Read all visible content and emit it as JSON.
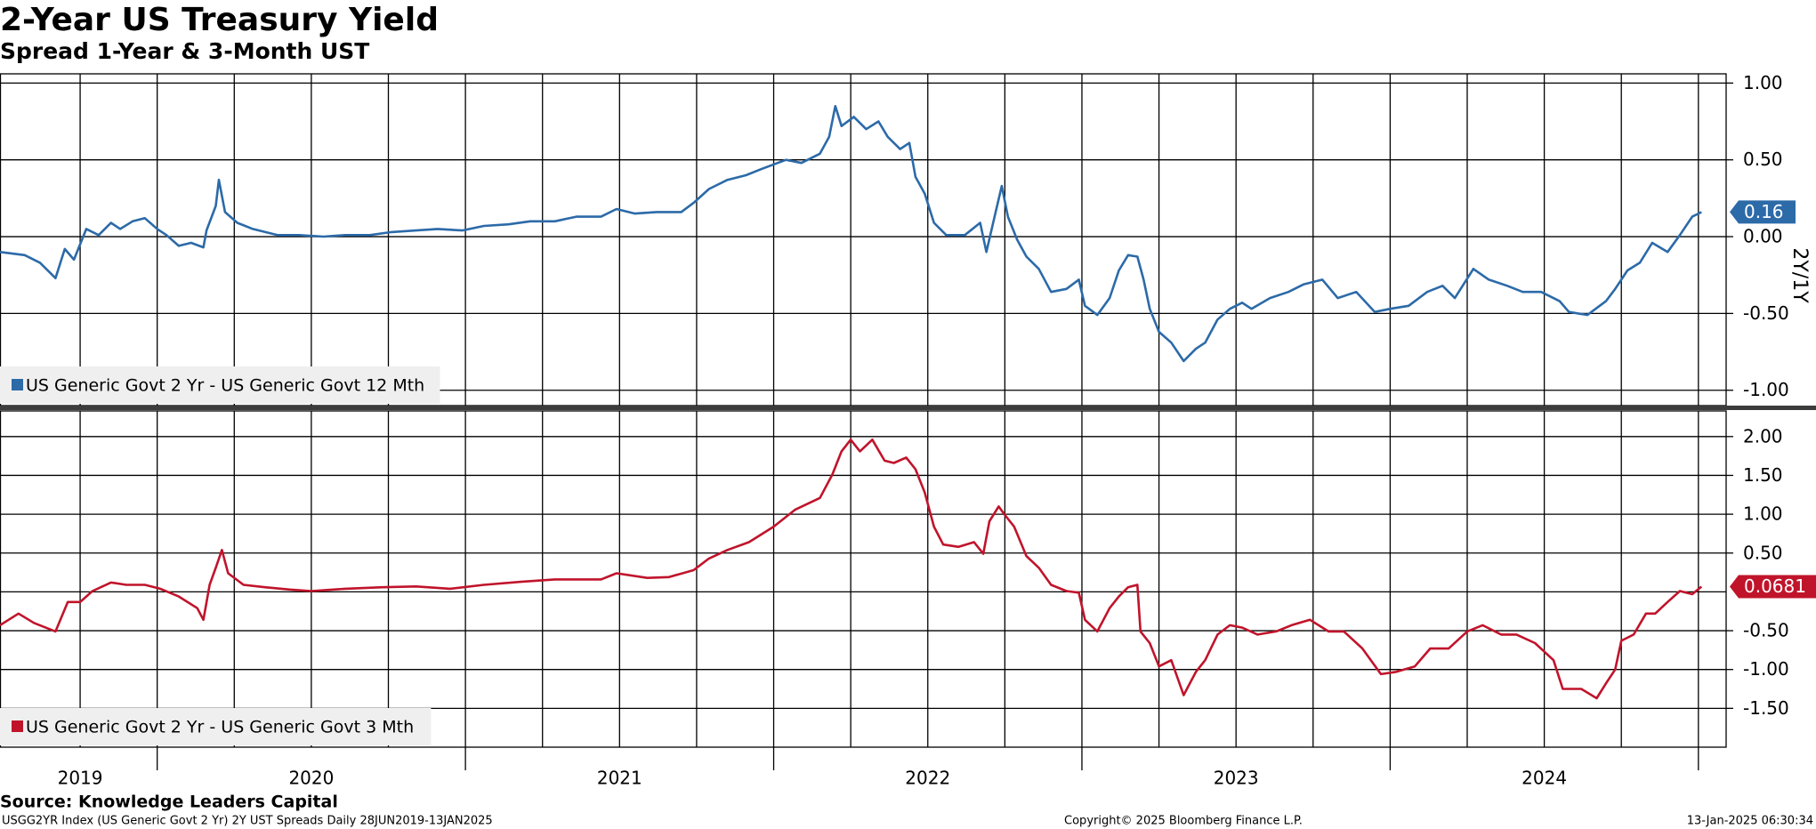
{
  "chart_data": [
    {
      "type": "line",
      "title": "2-Year US Treasury Yield",
      "subtitle": "Spread 1-Year & 3-Month UST",
      "y_axis_label": "2Y/1Y",
      "xlim": [
        2019.49,
        2025.09
      ],
      "ylim": [
        -1.1,
        1.06
      ],
      "legend": "bottom-left",
      "grid": true,
      "xgrid": [
        2019.75,
        2020,
        2020.25,
        2020.5,
        2020.75,
        2021,
        2021.25,
        2021.5,
        2021.75,
        2022,
        2022.25,
        2022.5,
        2022.75,
        2023,
        2023.25,
        2023.5,
        2023.75,
        2024,
        2024.25,
        2024.5,
        2024.75,
        2025
      ],
      "yticks": [
        {
          "value": 1,
          "label": "1.00"
        },
        {
          "value": 0.5,
          "label": "0.50"
        },
        {
          "value": 0,
          "label": "0.00"
        },
        {
          "value": -0.5,
          "label": "-0.50"
        },
        {
          "value": -1,
          "label": "-1.00"
        }
      ],
      "x": [
        2019.49,
        2019.57,
        2019.62,
        2019.67,
        2019.7,
        2019.73,
        2019.77,
        2019.81,
        2019.85,
        2019.88,
        2019.92,
        2019.96,
        2020.0,
        2020.03,
        2020.07,
        2020.11,
        2020.15,
        2020.16,
        2020.19,
        2020.2,
        2020.22,
        2020.26,
        2020.31,
        2020.39,
        2020.46,
        2020.54,
        2020.61,
        2020.69,
        2020.76,
        2020.84,
        2020.91,
        2020.99,
        2021.06,
        2021.14,
        2021.21,
        2021.29,
        2021.36,
        2021.44,
        2021.49,
        2021.55,
        2021.62,
        2021.7,
        2021.74,
        2021.79,
        2021.85,
        2021.91,
        2021.96,
        2022.04,
        2022.09,
        2022.15,
        2022.18,
        2022.2,
        2022.22,
        2022.26,
        2022.3,
        2022.34,
        2022.37,
        2022.41,
        2022.44,
        2022.46,
        2022.49,
        2022.52,
        2022.56,
        2022.62,
        2022.67,
        2022.69,
        2022.72,
        2022.74,
        2022.76,
        2022.79,
        2022.82,
        2022.86,
        2022.9,
        2022.95,
        2022.99,
        2023.01,
        2023.05,
        2023.09,
        2023.12,
        2023.15,
        2023.18,
        2023.2,
        2023.22,
        2023.25,
        2023.29,
        2023.33,
        2023.37,
        2023.4,
        2023.44,
        2023.48,
        2023.52,
        2023.55,
        2023.61,
        2023.67,
        2023.72,
        2023.78,
        2023.83,
        2023.89,
        2023.95,
        2024.0,
        2024.06,
        2024.12,
        2024.17,
        2024.21,
        2024.27,
        2024.32,
        2024.38,
        2024.43,
        2024.49,
        2024.55,
        2024.58,
        2024.64,
        2024.7,
        2024.73,
        2024.77,
        2024.81,
        2024.85,
        2024.9,
        2024.94,
        2024.98,
        2025.01
      ],
      "series": [
        {
          "name": "US Generic Govt 2 Yr - US Generic Govt 12 Mth",
          "color": "#2c6aa8",
          "last_value": 0.16,
          "values": [
            -0.1,
            -0.12,
            -0.17,
            -0.27,
            -0.08,
            -0.15,
            0.05,
            0.01,
            0.09,
            0.05,
            0.1,
            0.12,
            0.05,
            0.01,
            -0.06,
            -0.04,
            -0.07,
            0.04,
            0.2,
            0.37,
            0.16,
            0.09,
            0.05,
            0.01,
            0.01,
            0.0,
            0.01,
            0.01,
            0.03,
            0.04,
            0.05,
            0.04,
            0.07,
            0.08,
            0.1,
            0.1,
            0.13,
            0.13,
            0.18,
            0.15,
            0.16,
            0.16,
            0.22,
            0.31,
            0.37,
            0.4,
            0.44,
            0.5,
            0.48,
            0.54,
            0.65,
            0.85,
            0.72,
            0.78,
            0.7,
            0.75,
            0.65,
            0.57,
            0.61,
            0.39,
            0.28,
            0.09,
            0.01,
            0.01,
            0.09,
            -0.1,
            0.16,
            0.33,
            0.13,
            -0.02,
            -0.13,
            -0.21,
            -0.36,
            -0.34,
            -0.28,
            -0.45,
            -0.51,
            -0.4,
            -0.22,
            -0.12,
            -0.13,
            -0.28,
            -0.47,
            -0.62,
            -0.69,
            -0.81,
            -0.73,
            -0.69,
            -0.54,
            -0.47,
            -0.43,
            -0.47,
            -0.4,
            -0.36,
            -0.31,
            -0.28,
            -0.4,
            -0.36,
            -0.49,
            -0.47,
            -0.45,
            -0.36,
            -0.32,
            -0.4,
            -0.21,
            -0.28,
            -0.32,
            -0.36,
            -0.36,
            -0.42,
            -0.49,
            -0.51,
            -0.42,
            -0.34,
            -0.22,
            -0.17,
            -0.04,
            -0.1,
            0.01,
            0.13,
            0.16
          ]
        }
      ]
    },
    {
      "type": "line",
      "xlim": [
        2019.49,
        2025.09
      ],
      "ylim": [
        -2.0,
        2.33
      ],
      "legend": "bottom-left",
      "grid": true,
      "xgrid": [
        2019.75,
        2020,
        2020.25,
        2020.5,
        2020.75,
        2021,
        2021.25,
        2021.5,
        2021.75,
        2022,
        2022.25,
        2022.5,
        2022.75,
        2023,
        2023.25,
        2023.5,
        2023.75,
        2024,
        2024.25,
        2024.5,
        2024.75,
        2025
      ],
      "ygrid": [
        0
      ],
      "xticks": [
        {
          "value": 2019.75,
          "label": "2019"
        },
        {
          "value": 2020.5,
          "label": "2020"
        },
        {
          "value": 2021.5,
          "label": "2021"
        },
        {
          "value": 2022.5,
          "label": "2022"
        },
        {
          "value": 2023.5,
          "label": "2023"
        },
        {
          "value": 2024.5,
          "label": "2024"
        }
      ],
      "yticks": [
        {
          "value": 2,
          "label": "2.00"
        },
        {
          "value": 1.5,
          "label": "1.50"
        },
        {
          "value": 1,
          "label": "1.00"
        },
        {
          "value": 0.5,
          "label": "0.50"
        },
        {
          "value": -0.5,
          "label": "-0.50"
        },
        {
          "value": -1,
          "label": "-1.00"
        },
        {
          "value": -1.5,
          "label": "-1.50"
        }
      ],
      "x": [
        2019.49,
        2019.55,
        2019.6,
        2019.67,
        2019.71,
        2019.75,
        2019.79,
        2019.85,
        2019.9,
        2019.96,
        2020.01,
        2020.07,
        2020.13,
        2020.15,
        2020.17,
        2020.19,
        2020.21,
        2020.23,
        2020.28,
        2020.35,
        2020.43,
        2020.5,
        2020.61,
        2020.73,
        2020.84,
        2020.95,
        2021.06,
        2021.18,
        2021.29,
        2021.36,
        2021.44,
        2021.49,
        2021.59,
        2021.66,
        2021.74,
        2021.79,
        2021.85,
        2021.92,
        2022.0,
        2022.07,
        2022.15,
        2022.19,
        2022.22,
        2022.25,
        2022.28,
        2022.32,
        2022.36,
        2022.39,
        2022.43,
        2022.46,
        2022.49,
        2022.52,
        2022.55,
        2022.6,
        2022.65,
        2022.68,
        2022.7,
        2022.73,
        2022.75,
        2022.78,
        2022.82,
        2022.86,
        2022.9,
        2022.95,
        2022.99,
        2023.01,
        2023.05,
        2023.09,
        2023.12,
        2023.15,
        2023.18,
        2023.19,
        2023.22,
        2023.25,
        2023.29,
        2023.33,
        2023.37,
        2023.4,
        2023.44,
        2023.48,
        2023.52,
        2023.57,
        2023.63,
        2023.68,
        2023.74,
        2023.8,
        2023.85,
        2023.91,
        2023.97,
        2024.02,
        2024.08,
        2024.13,
        2024.19,
        2024.25,
        2024.3,
        2024.36,
        2024.41,
        2024.47,
        2024.53,
        2024.56,
        2024.62,
        2024.67,
        2024.7,
        2024.73,
        2024.75,
        2024.79,
        2024.83,
        2024.86,
        2024.9,
        2024.94,
        2024.98,
        2025.01
      ],
      "series": [
        {
          "name": "US Generic Govt 2 Yr - US Generic Govt 3 Mth",
          "color": "#c0142b",
          "last_value": 0.0681,
          "values": [
            -0.43,
            -0.28,
            -0.4,
            -0.51,
            -0.13,
            -0.13,
            0.01,
            0.12,
            0.09,
            0.09,
            0.04,
            -0.06,
            -0.21,
            -0.36,
            0.09,
            0.31,
            0.54,
            0.24,
            0.09,
            0.06,
            0.03,
            0.01,
            0.04,
            0.06,
            0.07,
            0.04,
            0.09,
            0.13,
            0.16,
            0.16,
            0.16,
            0.24,
            0.18,
            0.19,
            0.28,
            0.43,
            0.54,
            0.64,
            0.84,
            1.06,
            1.21,
            1.51,
            1.81,
            1.96,
            1.81,
            1.96,
            1.69,
            1.66,
            1.73,
            1.58,
            1.28,
            0.84,
            0.61,
            0.58,
            0.64,
            0.49,
            0.91,
            1.1,
            0.99,
            0.84,
            0.46,
            0.31,
            0.09,
            0.01,
            -0.01,
            -0.36,
            -0.51,
            -0.21,
            -0.06,
            0.06,
            0.09,
            -0.51,
            -0.66,
            -0.96,
            -0.88,
            -1.33,
            -1.03,
            -0.88,
            -0.55,
            -0.43,
            -0.46,
            -0.55,
            -0.51,
            -0.43,
            -0.36,
            -0.51,
            -0.51,
            -0.73,
            -1.06,
            -1.03,
            -0.96,
            -0.73,
            -0.73,
            -0.51,
            -0.43,
            -0.55,
            -0.55,
            -0.66,
            -0.88,
            -1.25,
            -1.25,
            -1.37,
            -1.18,
            -1.0,
            -0.63,
            -0.55,
            -0.28,
            -0.28,
            -0.13,
            0.01,
            -0.03,
            0.0681
          ]
        }
      ]
    }
  ],
  "footer": {
    "source": "Source: Knowledge Leaders Capital",
    "description": "USGG2YR Index (US Generic Govt 2 Yr) 2Y UST Spreads  Daily 28JUN2019-13JAN2025",
    "copyright": "Copyright© 2025 Bloomberg Finance L.P.",
    "timestamp": "13-Jan-2025 06:30:34"
  }
}
